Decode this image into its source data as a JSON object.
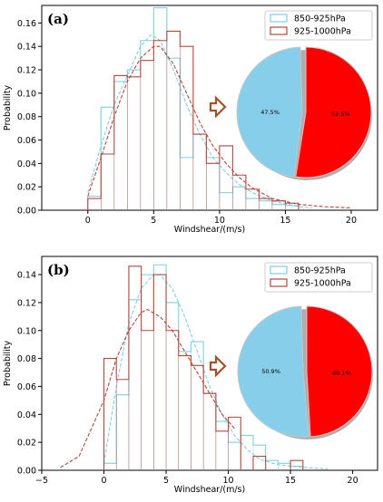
{
  "colors": {
    "blue": "#7fcfe8",
    "red": "#b5473a",
    "pie_blue": "#87ceeb",
    "pie_red": "#ff0000",
    "arrow": "#a0522d"
  },
  "chart_data": [
    {
      "type": "histogram",
      "panel_label": "(a)",
      "xlabel": "Windshear/(m/s)",
      "ylabel": "Probability",
      "xlim": [
        -3.5,
        22
      ],
      "ylim": [
        0,
        0.175
      ],
      "xticks": [
        "0",
        "5",
        "10",
        "15",
        "20"
      ],
      "yticks": [
        "0.00",
        "0.02",
        "0.04",
        "0.06",
        "0.08",
        "0.10",
        "0.12",
        "0.14",
        "0.16"
      ],
      "legend": [
        "850-925hPa",
        "925-1000hPa"
      ],
      "legend_position": "top-right",
      "series": [
        {
          "name": "850-925hPa",
          "bin_edges": [
            0,
            1,
            2,
            3,
            4,
            5,
            6,
            7,
            8,
            9,
            10,
            11,
            12,
            13,
            14,
            15,
            16
          ],
          "values": [
            0.012,
            0.088,
            0.11,
            0.12,
            0.145,
            0.173,
            0.13,
            0.045,
            0.065,
            0.045,
            0.015,
            0.02,
            0.01,
            0.008,
            0.005,
            0.004
          ],
          "fit": [
            [
              0,
              0.015
            ],
            [
              1,
              0.055
            ],
            [
              2,
              0.09
            ],
            [
              3,
              0.115
            ],
            [
              4,
              0.14
            ],
            [
              4.8,
              0.15
            ],
            [
              5.5,
              0.145
            ],
            [
              6.5,
              0.12
            ],
            [
              7.5,
              0.09
            ],
            [
              8.5,
              0.065
            ],
            [
              9.5,
              0.045
            ],
            [
              10.5,
              0.032
            ],
            [
              11.5,
              0.022
            ],
            [
              12.5,
              0.015
            ],
            [
              14,
              0.008
            ],
            [
              16,
              0.003
            ],
            [
              17,
              0.002
            ]
          ]
        },
        {
          "name": "925-1000hPa",
          "bin_edges": [
            0,
            1,
            2,
            3,
            4,
            5,
            6,
            7,
            8,
            9,
            10,
            11,
            12,
            13,
            14,
            15,
            16
          ],
          "values": [
            0.01,
            0.048,
            0.115,
            0.114,
            0.128,
            0.145,
            0.153,
            0.14,
            0.065,
            0.04,
            0.055,
            0.03,
            0.018,
            0.01,
            0.008,
            0.006
          ],
          "fit": [
            [
              0,
              0.012
            ],
            [
              1,
              0.045
            ],
            [
              2,
              0.08
            ],
            [
              3,
              0.11
            ],
            [
              4,
              0.13
            ],
            [
              5,
              0.14
            ],
            [
              5.5,
              0.14
            ],
            [
              6.5,
              0.125
            ],
            [
              7.5,
              0.1
            ],
            [
              8.5,
              0.075
            ],
            [
              9.5,
              0.055
            ],
            [
              10.5,
              0.04
            ],
            [
              11.5,
              0.028
            ],
            [
              12.5,
              0.019
            ],
            [
              14,
              0.01
            ],
            [
              16,
              0.005
            ],
            [
              18,
              0.003
            ],
            [
              20,
              0.002
            ]
          ]
        }
      ],
      "pie": {
        "labels": [
          "47.5%",
          "52.5%"
        ],
        "values": [
          47.5,
          52.5
        ]
      }
    },
    {
      "type": "histogram",
      "panel_label": "(b)",
      "xlabel": "Windshear/(m/s)",
      "ylabel": "Probability",
      "xlim": [
        -5,
        22
      ],
      "ylim": [
        0,
        0.153
      ],
      "xticks": [
        "−5",
        "0",
        "5",
        "10",
        "15",
        "20"
      ],
      "yticks": [
        "0.00",
        "0.02",
        "0.04",
        "0.06",
        "0.08",
        "0.10",
        "0.12",
        "0.14"
      ],
      "legend": [
        "850-925hPa",
        "925-1000hPa"
      ],
      "legend_position": "top-right",
      "series": [
        {
          "name": "850-925hPa",
          "bin_edges": [
            0,
            1,
            2,
            3,
            4,
            5,
            6,
            7,
            8,
            9,
            10,
            11,
            12,
            13,
            14,
            15,
            16
          ],
          "values": [
            0.005,
            0.054,
            0.122,
            0.14,
            0.147,
            0.12,
            0.085,
            0.092,
            0.055,
            0.035,
            0.02,
            0.025,
            0.018,
            0.007,
            0.005,
            0.003
          ],
          "fit": [
            [
              0,
              0.005
            ],
            [
              1,
              0.06
            ],
            [
              2,
              0.105
            ],
            [
              3,
              0.13
            ],
            [
              4,
              0.14
            ],
            [
              4.5,
              0.14
            ],
            [
              5.5,
              0.13
            ],
            [
              6.5,
              0.11
            ],
            [
              7.5,
              0.085
            ],
            [
              8.5,
              0.06
            ],
            [
              9.5,
              0.04
            ],
            [
              10.5,
              0.025
            ],
            [
              11.5,
              0.015
            ],
            [
              12.5,
              0.008
            ],
            [
              14,
              0.004
            ],
            [
              16,
              0.002
            ],
            [
              18,
              0.001
            ]
          ]
        },
        {
          "name": "925-1000hPa",
          "bin_edges": [
            0,
            1,
            2,
            3,
            4,
            5,
            6,
            7,
            8,
            9,
            10,
            11
          ],
          "values": [
            0.08,
            0.065,
            0.146,
            0.1,
            0.14,
            0.1,
            0.082,
            0.075,
            0.055,
            0.028,
            0.038
          ],
          "fit": [
            [
              -3.5,
              0.002
            ],
            [
              -2,
              0.01
            ],
            [
              -1,
              0.03
            ],
            [
              0,
              0.05
            ],
            [
              1,
              0.08
            ],
            [
              2,
              0.1
            ],
            [
              3,
              0.113
            ],
            [
              3.5,
              0.115
            ],
            [
              4.5,
              0.11
            ],
            [
              5.5,
              0.1
            ],
            [
              6.5,
              0.085
            ],
            [
              7.5,
              0.07
            ],
            [
              8.5,
              0.055
            ],
            [
              9.5,
              0.04
            ],
            [
              10.5,
              0.03
            ]
          ]
        }
      ],
      "extra_bins": [
        {
          "series": "925-1000hPa",
          "bin_edges": [
            15,
            16
          ],
          "value": 0.007
        },
        {
          "series": "925-1000hPa",
          "bin_edges": [
            12,
            13
          ],
          "value": 0.01
        }
      ],
      "pie": {
        "labels": [
          "50.9%",
          "49.1%"
        ],
        "values": [
          50.9,
          49.1
        ]
      }
    }
  ]
}
